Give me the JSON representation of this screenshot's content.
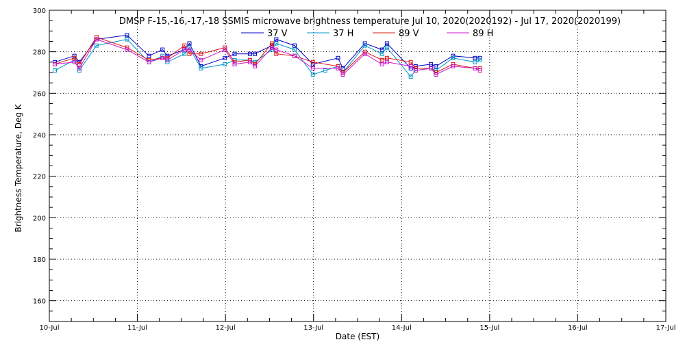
{
  "chart_data": {
    "type": "line",
    "title": "DMSP F-15,-16,-17,-18 SSMIS microwave brightness temperature Jul 10, 2020(2020192) - Jul 17, 2020(2020199)",
    "xlabel": "Date (EST)",
    "ylabel": "Brightness Temperature, Deg K",
    "xlim": [
      "2020-07-10T00:00",
      "2020-07-17T00:00"
    ],
    "ylim": [
      150,
      300
    ],
    "x_ticks": [
      "10-Jul",
      "11-Jul",
      "12-Jul",
      "13-Jul",
      "14-Jul",
      "15-Jul",
      "16-Jul",
      "17-Jul"
    ],
    "y_ticks": [
      160,
      180,
      200,
      220,
      240,
      260,
      280,
      300
    ],
    "grid": true,
    "legend_position": "top",
    "series": [
      {
        "name": "37 V",
        "color": "#0000c8",
        "points": [
          [
            "2020-07-10T01:30",
            275
          ],
          [
            "2020-07-10T06:50",
            278
          ],
          [
            "2020-07-10T08:10",
            275
          ],
          [
            "2020-07-10T12:50",
            286
          ],
          [
            "2020-07-10T21:10",
            288
          ],
          [
            "2020-07-11T03:10",
            278
          ],
          [
            "2020-07-11T06:50",
            281
          ],
          [
            "2020-07-11T08:10",
            278
          ],
          [
            "2020-07-11T12:50",
            281
          ],
          [
            "2020-07-11T14:10",
            284
          ],
          [
            "2020-07-11T17:20",
            273
          ],
          [
            "2020-07-11T23:50",
            277
          ],
          [
            "2020-07-12T02:30",
            279
          ],
          [
            "2020-07-12T06:40",
            279
          ],
          [
            "2020-07-12T08:00",
            279
          ],
          [
            "2020-07-12T12:40",
            283
          ],
          [
            "2020-07-12T13:50",
            286
          ],
          [
            "2020-07-12T18:50",
            283
          ],
          [
            "2020-07-12T23:50",
            274
          ],
          [
            "2020-07-13T06:40",
            277
          ],
          [
            "2020-07-13T08:00",
            272
          ],
          [
            "2020-07-13T14:00",
            284
          ],
          [
            "2020-07-13T18:40",
            281
          ],
          [
            "2020-07-13T20:00",
            284
          ],
          [
            "2020-07-14T02:30",
            272
          ],
          [
            "2020-07-14T03:50",
            273
          ],
          [
            "2020-07-14T08:00",
            274
          ],
          [
            "2020-07-14T09:20",
            273
          ],
          [
            "2020-07-14T14:00",
            278
          ],
          [
            "2020-07-14T20:00",
            277
          ],
          [
            "2020-07-14T21:20",
            277
          ]
        ]
      },
      {
        "name": "37 H",
        "color": "#0096c8",
        "points": [
          [
            "2020-07-10T01:30",
            271
          ],
          [
            "2020-07-10T06:50",
            276
          ],
          [
            "2020-07-10T08:10",
            271
          ],
          [
            "2020-07-10T12:50",
            283
          ],
          [
            "2020-07-10T21:10",
            286
          ],
          [
            "2020-07-11T03:10",
            275
          ],
          [
            "2020-07-11T06:50",
            278
          ],
          [
            "2020-07-11T08:10",
            275
          ],
          [
            "2020-07-11T12:50",
            279
          ],
          [
            "2020-07-11T14:10",
            282
          ],
          [
            "2020-07-11T17:20",
            272
          ],
          [
            "2020-07-11T23:50",
            274
          ],
          [
            "2020-07-12T02:30",
            276
          ],
          [
            "2020-07-12T06:40",
            276
          ],
          [
            "2020-07-12T08:00",
            275
          ],
          [
            "2020-07-12T12:40",
            281
          ],
          [
            "2020-07-12T13:50",
            284
          ],
          [
            "2020-07-12T18:50",
            281
          ],
          [
            "2020-07-12T23:50",
            269
          ],
          [
            "2020-07-13T03:10",
            271
          ],
          [
            "2020-07-13T06:40",
            273
          ],
          [
            "2020-07-13T08:00",
            270
          ],
          [
            "2020-07-13T14:00",
            283
          ],
          [
            "2020-07-13T18:40",
            279
          ],
          [
            "2020-07-13T20:00",
            282
          ],
          [
            "2020-07-14T02:30",
            268
          ],
          [
            "2020-07-14T03:50",
            271
          ],
          [
            "2020-07-14T08:00",
            272
          ],
          [
            "2020-07-14T09:20",
            271
          ],
          [
            "2020-07-14T14:00",
            277
          ],
          [
            "2020-07-14T20:00",
            275
          ],
          [
            "2020-07-14T21:20",
            276
          ]
        ]
      },
      {
        "name": "89 V",
        "color": "#dc1414",
        "points": [
          [
            "2020-07-10T01:30",
            274
          ],
          [
            "2020-07-10T06:50",
            277
          ],
          [
            "2020-07-10T08:10",
            274
          ],
          [
            "2020-07-10T12:50",
            287
          ],
          [
            "2020-07-10T21:10",
            282
          ],
          [
            "2020-07-11T03:10",
            276
          ],
          [
            "2020-07-11T06:50",
            277
          ],
          [
            "2020-07-11T08:10",
            277
          ],
          [
            "2020-07-11T12:50",
            283
          ],
          [
            "2020-07-11T14:10",
            279
          ],
          [
            "2020-07-11T17:20",
            279
          ],
          [
            "2020-07-11T23:50",
            282
          ],
          [
            "2020-07-12T02:30",
            275
          ],
          [
            "2020-07-12T06:40",
            276
          ],
          [
            "2020-07-12T08:00",
            274
          ],
          [
            "2020-07-12T12:40",
            284
          ],
          [
            "2020-07-12T13:50",
            279
          ],
          [
            "2020-07-12T18:50",
            278
          ],
          [
            "2020-07-12T23:50",
            275
          ],
          [
            "2020-07-13T06:40",
            273
          ],
          [
            "2020-07-13T08:00",
            270
          ],
          [
            "2020-07-13T14:00",
            280
          ],
          [
            "2020-07-13T18:40",
            276
          ],
          [
            "2020-07-13T20:00",
            277
          ],
          [
            "2020-07-14T02:30",
            275
          ],
          [
            "2020-07-14T03:50",
            272
          ],
          [
            "2020-07-14T08:00",
            272
          ],
          [
            "2020-07-14T09:20",
            270
          ],
          [
            "2020-07-14T14:00",
            274
          ],
          [
            "2020-07-14T20:00",
            272
          ],
          [
            "2020-07-14T21:20",
            272
          ]
        ]
      },
      {
        "name": "89 H",
        "color": "#c814c8",
        "points": [
          [
            "2020-07-10T01:30",
            274
          ],
          [
            "2020-07-10T06:50",
            275
          ],
          [
            "2020-07-10T08:10",
            272
          ],
          [
            "2020-07-10T12:50",
            286
          ],
          [
            "2020-07-10T21:10",
            281
          ],
          [
            "2020-07-11T03:10",
            275
          ],
          [
            "2020-07-11T06:50",
            277
          ],
          [
            "2020-07-11T08:10",
            276
          ],
          [
            "2020-07-11T12:50",
            281
          ],
          [
            "2020-07-11T14:10",
            281
          ],
          [
            "2020-07-11T17:20",
            276
          ],
          [
            "2020-07-11T23:50",
            281
          ],
          [
            "2020-07-12T02:30",
            274
          ],
          [
            "2020-07-12T06:40",
            275
          ],
          [
            "2020-07-12T08:00",
            273
          ],
          [
            "2020-07-12T12:40",
            282
          ],
          [
            "2020-07-12T13:50",
            281
          ],
          [
            "2020-07-12T18:50",
            278
          ],
          [
            "2020-07-12T23:50",
            272
          ],
          [
            "2020-07-13T06:40",
            272
          ],
          [
            "2020-07-13T08:00",
            269
          ],
          [
            "2020-07-13T14:00",
            279
          ],
          [
            "2020-07-13T18:40",
            274
          ],
          [
            "2020-07-13T20:00",
            275
          ],
          [
            "2020-07-14T02:30",
            273
          ],
          [
            "2020-07-14T03:50",
            271
          ],
          [
            "2020-07-14T08:00",
            272
          ],
          [
            "2020-07-14T09:20",
            269
          ],
          [
            "2020-07-14T14:00",
            273
          ],
          [
            "2020-07-14T20:00",
            272
          ],
          [
            "2020-07-14T21:20",
            271
          ]
        ]
      }
    ]
  }
}
